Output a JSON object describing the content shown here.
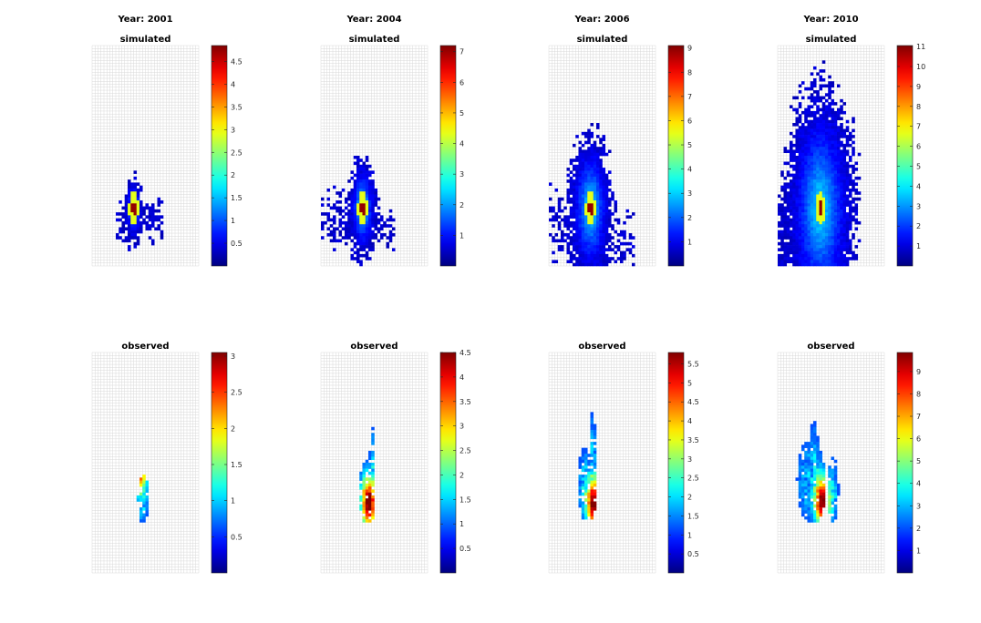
{
  "figure": {
    "title_template": "Year: {year}",
    "colormap": "jet",
    "panels": [
      {
        "year": "2001",
        "simulated": {
          "title": "simulated",
          "cmax": 4.85,
          "ticks": [
            "0.5",
            "1",
            "1.5",
            "2",
            "2.5",
            "3",
            "3.5",
            "4",
            "4.5"
          ]
        },
        "observed": {
          "title": "observed",
          "cmax": 3.05,
          "ticks": [
            "0.5",
            "1",
            "1.5",
            "2",
            "2.5",
            "3"
          ]
        }
      },
      {
        "year": "2004",
        "simulated": {
          "title": "simulated",
          "cmax": 7.2,
          "ticks": [
            "1",
            "2",
            "3",
            "4",
            "5",
            "6",
            "7"
          ]
        },
        "observed": {
          "title": "observed",
          "cmax": 4.5,
          "ticks": [
            "0.5",
            "1",
            "1.5",
            "2",
            "2.5",
            "3",
            "3.5",
            "4",
            "4.5"
          ]
        }
      },
      {
        "year": "2006",
        "simulated": {
          "title": "simulated",
          "cmax": 9.1,
          "ticks": [
            "1",
            "2",
            "3",
            "4",
            "5",
            "6",
            "7",
            "8",
            "9"
          ]
        },
        "observed": {
          "title": "observed",
          "cmax": 5.8,
          "ticks": [
            "0.5",
            "1",
            "1.5",
            "2",
            "2.5",
            "3",
            "3.5",
            "4",
            "4.5",
            "5",
            "5.5"
          ]
        }
      },
      {
        "year": "2010",
        "simulated": {
          "title": "simulated",
          "cmax": 11.05,
          "ticks": [
            "1",
            "2",
            "3",
            "4",
            "5",
            "6",
            "7",
            "8",
            "9",
            "10",
            "11"
          ]
        },
        "observed": {
          "title": "observed",
          "cmax": 9.85,
          "ticks": [
            "1",
            "2",
            "3",
            "4",
            "5",
            "6",
            "7",
            "8",
            "9"
          ]
        }
      }
    ]
  },
  "chart_data": {
    "type": "heatmap",
    "layout": "2 rows x 4 columns",
    "columns": [
      "Year: 2001",
      "Year: 2004",
      "Year: 2006",
      "Year: 2010"
    ],
    "rows": [
      "simulated",
      "observed"
    ],
    "colorbar_ranges": {
      "2001": {
        "simulated": [
          0,
          4.85
        ],
        "observed": [
          0,
          3.05
        ]
      },
      "2004": {
        "simulated": [
          0,
          7.2
        ],
        "observed": [
          0,
          4.5
        ]
      },
      "2006": {
        "simulated": [
          0,
          9.1
        ],
        "observed": [
          0,
          5.8
        ]
      },
      "2010": {
        "simulated": [
          0,
          11.05
        ],
        "observed": [
          0,
          9.85
        ]
      }
    },
    "grid": true
  }
}
